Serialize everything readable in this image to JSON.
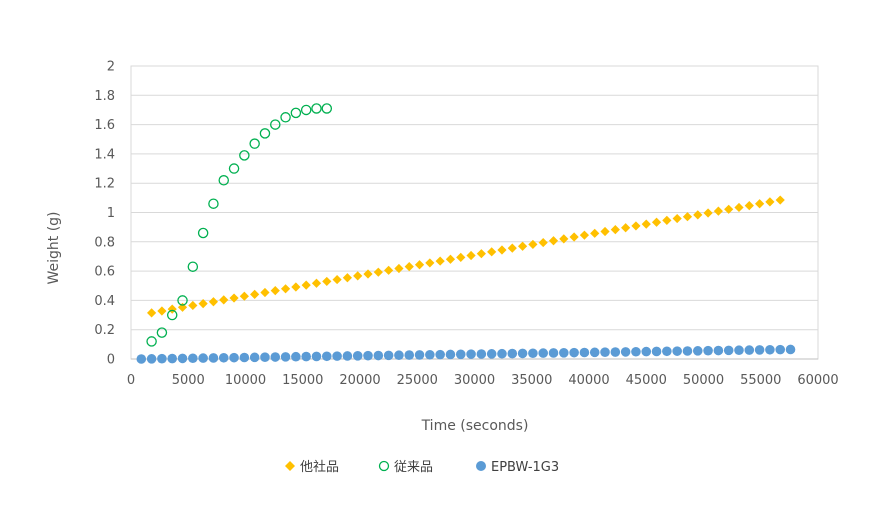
{
  "chart_data": {
    "type": "scatter",
    "title": "",
    "xlabel": "Time (seconds)",
    "ylabel": "Weight (g)",
    "xlim": [
      0,
      60000
    ],
    "ylim": [
      0,
      2
    ],
    "x_ticks": [
      0,
      5000,
      10000,
      15000,
      20000,
      25000,
      30000,
      35000,
      40000,
      45000,
      50000,
      55000,
      60000
    ],
    "y_ticks": [
      "0",
      "0.2",
      "0.4",
      "0.6",
      "0.8",
      "1",
      "1.2",
      "1.4",
      "1.6",
      "1.8",
      "2"
    ],
    "grid": "horizontal",
    "legend_position": "bottom",
    "series": [
      {
        "name": "他社品",
        "marker": "diamond",
        "color": "#FFC000",
        "x_start": 1800,
        "x_step": 900,
        "count": 62,
        "y_start": 0.315,
        "y_end": 1.085,
        "points_note_omitted": true
      },
      {
        "name": "従来品",
        "marker": "circle-open",
        "color": "#00B050",
        "x": [
          1800,
          2700,
          3600,
          4500,
          5400,
          6300,
          7200,
          8100,
          9000,
          9900,
          10800,
          11700,
          12600,
          13500,
          14400,
          15300,
          16200,
          17100
        ],
        "y": [
          0.12,
          0.18,
          0.3,
          0.4,
          0.63,
          0.86,
          1.06,
          1.22,
          1.3,
          1.39,
          1.47,
          1.54,
          1.6,
          1.65,
          1.68,
          1.7,
          1.71,
          1.71
        ]
      },
      {
        "name": "EPBW-1G3",
        "marker": "circle",
        "color": "#5B9BD5",
        "x_start": 900,
        "x_step": 900,
        "count": 64,
        "y_start": 0.0,
        "y_end": 0.065,
        "points_note_omitted": true
      }
    ]
  }
}
